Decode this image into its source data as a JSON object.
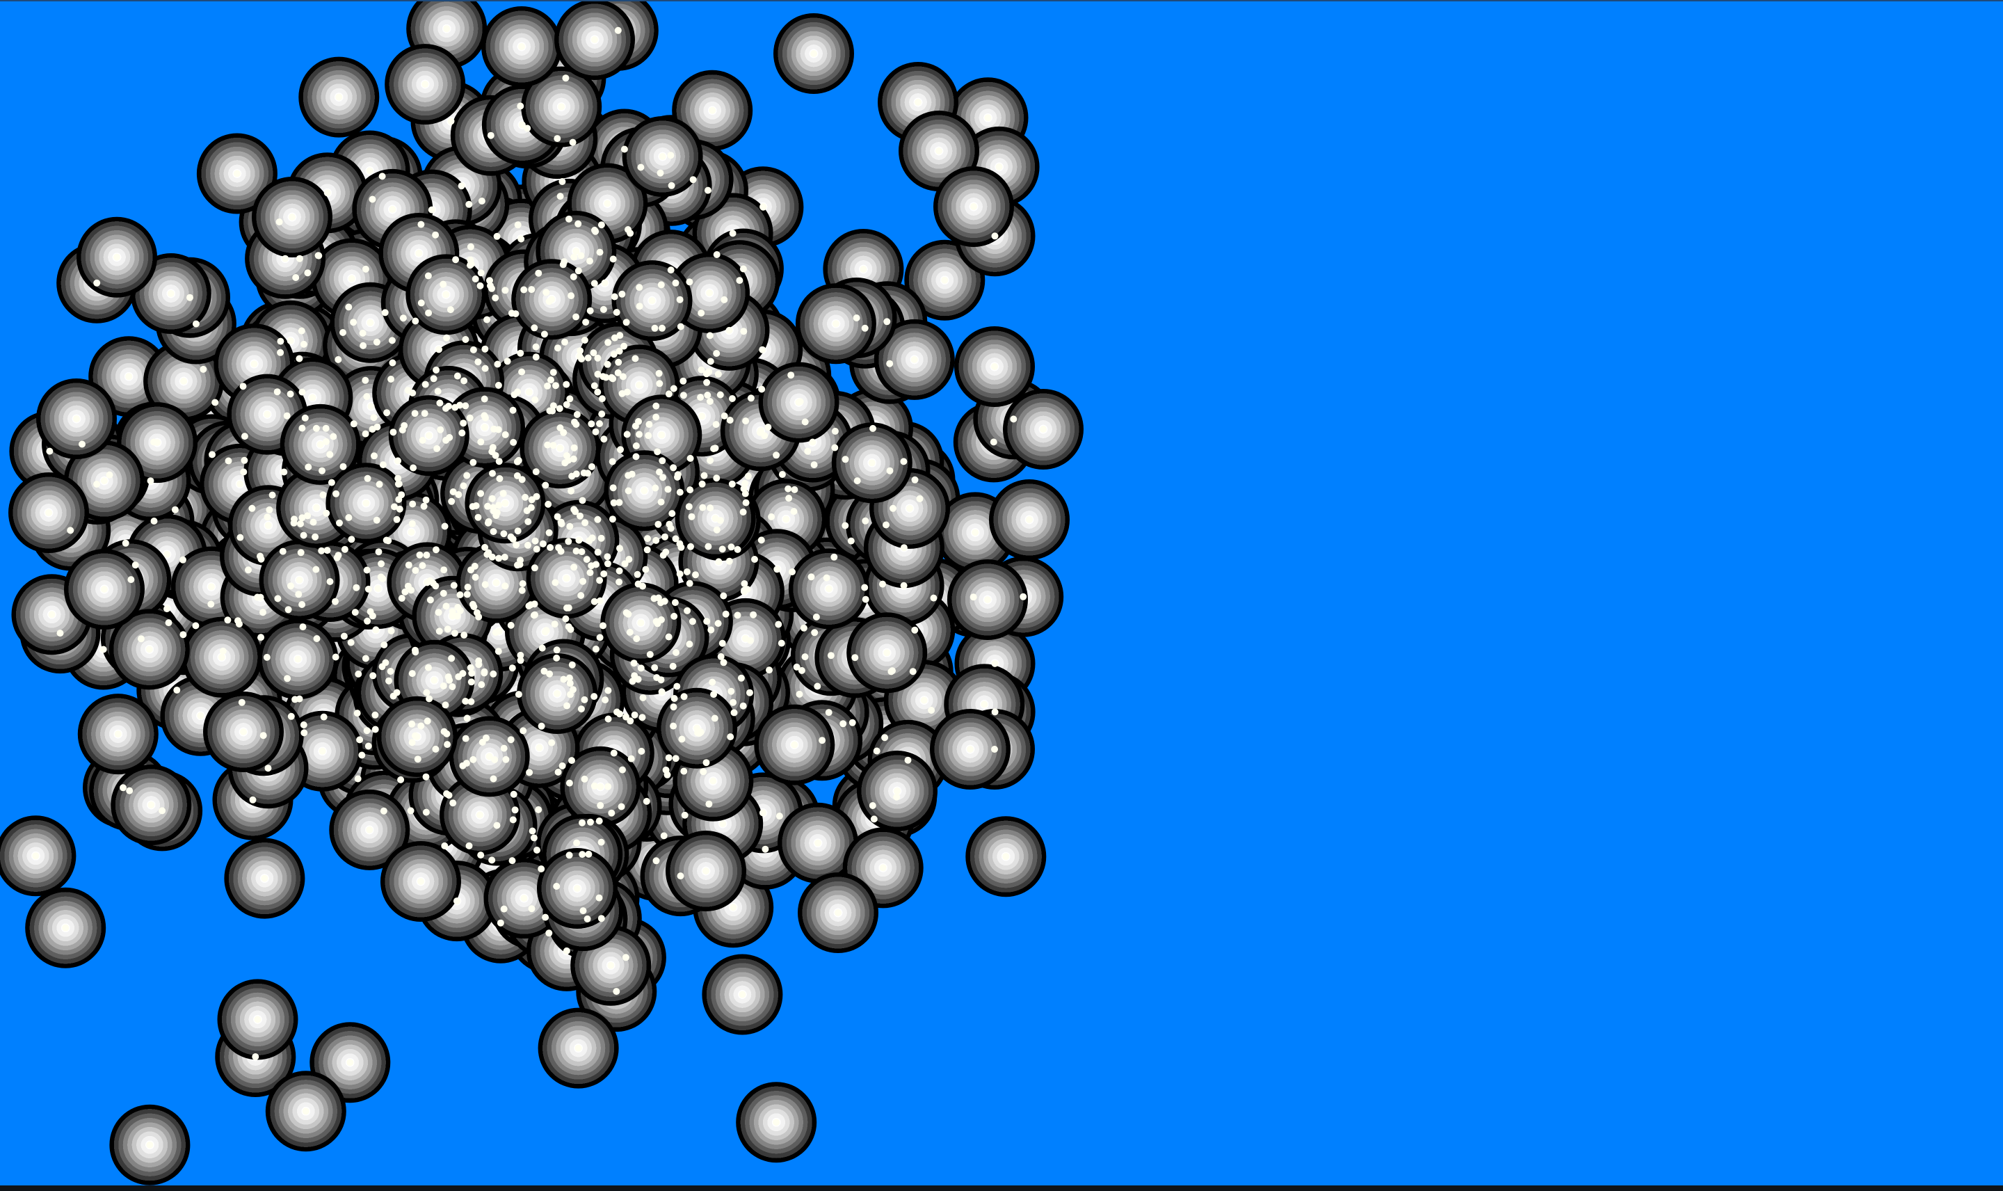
{
  "scene": {
    "background_color": "#0080ff",
    "cluster": {
      "particle_count": 1100,
      "seed": 1337,
      "particle_center_color": "#fffff0",
      "particle_shading": [
        "#ffffff",
        "#f3f3f3",
        "#e0e0e0",
        "#c6c6c6",
        "#a5a5a5",
        "#838383",
        "#5e5e5e",
        "#3a3a3a",
        "#000000"
      ]
    }
  }
}
